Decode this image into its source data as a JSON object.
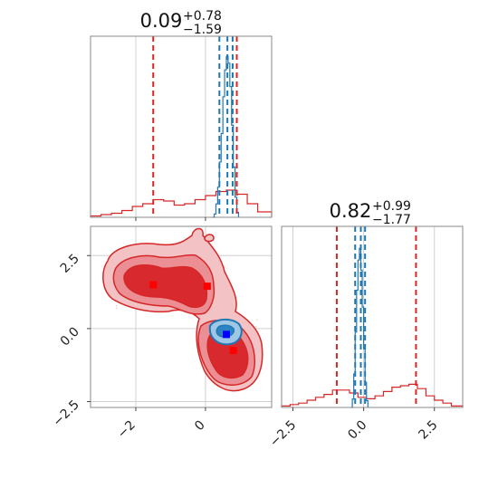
{
  "chart_data": {
    "type": "corner",
    "grid": true,
    "colors": {
      "series_a": "#d62728",
      "series_b": "#1f77b4",
      "marker_a": "#ff0000",
      "marker_b": "#0000ff"
    },
    "panels": {
      "hist_x": {
        "title_value": "0.09",
        "title_plus": "+0.78",
        "title_minus": "−1.59",
        "xlim": [
          -3.3,
          1.9
        ],
        "quantiles_a": [
          -1.5,
          0.9
        ],
        "quantiles_b": [
          0.4,
          0.63,
          0.78
        ],
        "series_a_bins": [
          [
            -3.3,
            0.01
          ],
          [
            -3.0,
            0.02
          ],
          [
            -2.7,
            0.03
          ],
          [
            -2.4,
            0.05
          ],
          [
            -2.1,
            0.08
          ],
          [
            -1.8,
            0.1
          ],
          [
            -1.5,
            0.13
          ],
          [
            -1.2,
            0.12
          ],
          [
            -0.9,
            0.09
          ],
          [
            -0.6,
            0.1
          ],
          [
            -0.3,
            0.13
          ],
          [
            0.0,
            0.16
          ],
          [
            0.3,
            0.19
          ],
          [
            0.6,
            0.2
          ],
          [
            0.9,
            0.17
          ],
          [
            1.2,
            0.1
          ],
          [
            1.5,
            0.04
          ]
        ],
        "series_b_bins": [
          [
            0.2,
            0.0
          ],
          [
            0.25,
            0.02
          ],
          [
            0.3,
            0.08
          ],
          [
            0.35,
            0.18
          ],
          [
            0.4,
            0.33
          ],
          [
            0.45,
            0.5
          ],
          [
            0.5,
            0.72
          ],
          [
            0.55,
            0.88
          ],
          [
            0.6,
            0.96
          ],
          [
            0.65,
            0.92
          ],
          [
            0.7,
            0.78
          ],
          [
            0.75,
            0.55
          ],
          [
            0.8,
            0.3
          ],
          [
            0.85,
            0.12
          ],
          [
            0.9,
            0.03
          ]
        ]
      },
      "hist_y": {
        "title_value": "0.82",
        "title_plus": "+0.99",
        "title_minus": "−1.77",
        "xlim": [
          -2.9,
          3.5
        ],
        "xticks": [
          "−2.5",
          "0.0",
          "2.5"
        ],
        "xtick_values": [
          -2.5,
          0.0,
          2.5
        ],
        "quantiles_a": [
          -0.95,
          1.85
        ],
        "quantiles_b": [
          -0.3,
          -0.1,
          0.05
        ],
        "series_a_bins": [
          [
            -2.9,
            0.01
          ],
          [
            -2.6,
            0.02
          ],
          [
            -2.3,
            0.03
          ],
          [
            -2.0,
            0.05
          ],
          [
            -1.7,
            0.07
          ],
          [
            -1.4,
            0.09
          ],
          [
            -1.1,
            0.12
          ],
          [
            -0.8,
            0.12
          ],
          [
            -0.5,
            0.1
          ],
          [
            -0.2,
            0.07
          ],
          [
            0.1,
            0.06
          ],
          [
            0.4,
            0.08
          ],
          [
            0.7,
            0.11
          ],
          [
            1.0,
            0.14
          ],
          [
            1.3,
            0.15
          ],
          [
            1.6,
            0.16
          ],
          [
            1.9,
            0.13
          ],
          [
            2.2,
            0.08
          ],
          [
            2.5,
            0.05
          ],
          [
            2.8,
            0.03
          ],
          [
            3.1,
            0.01
          ]
        ],
        "series_b_bins": [
          [
            -0.45,
            0.0
          ],
          [
            -0.4,
            0.05
          ],
          [
            -0.35,
            0.2
          ],
          [
            -0.3,
            0.45
          ],
          [
            -0.25,
            0.7
          ],
          [
            -0.2,
            0.88
          ],
          [
            -0.15,
            0.95
          ],
          [
            -0.1,
            0.82
          ],
          [
            -0.05,
            0.6
          ],
          [
            0.0,
            0.35
          ],
          [
            0.05,
            0.15
          ],
          [
            0.1,
            0.04
          ]
        ]
      },
      "joint": {
        "xlim": [
          -3.3,
          1.9
        ],
        "ylim": [
          -2.7,
          3.5
        ],
        "xticks": [
          "−2",
          "0"
        ],
        "xtick_values": [
          -2,
          0
        ],
        "yticks": [
          "−2.5",
          "0.0",
          "2.5"
        ],
        "ytick_values": [
          -2.5,
          0.0,
          2.5
        ],
        "markers_a": [
          [
            -1.5,
            1.5
          ],
          [
            0.05,
            1.45
          ],
          [
            0.8,
            -0.75
          ]
        ],
        "markers_b": [
          [
            0.6,
            -0.2
          ]
        ]
      }
    }
  }
}
